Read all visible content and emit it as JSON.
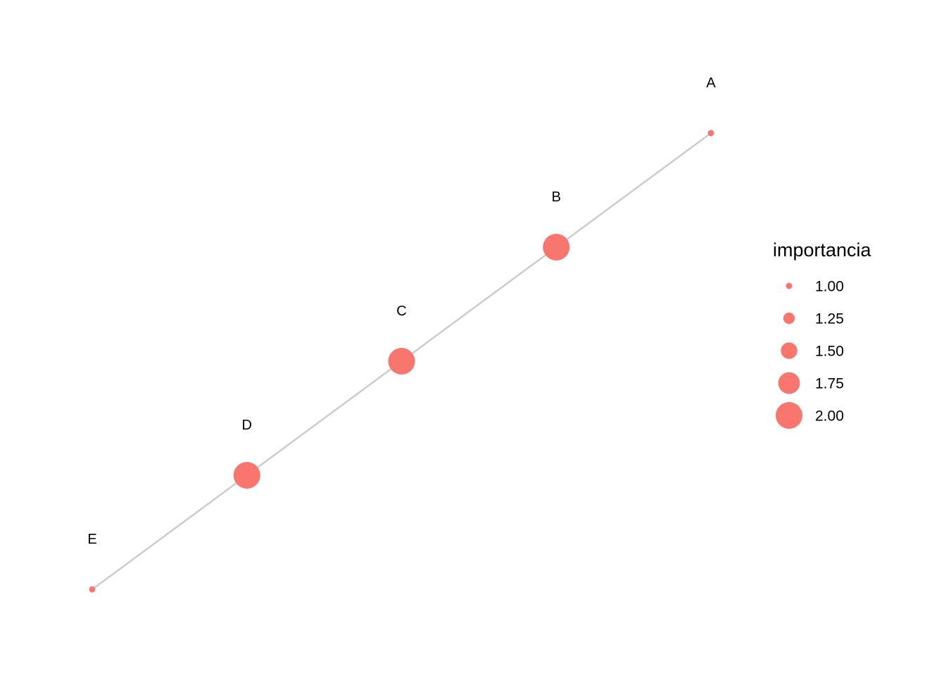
{
  "graph": {
    "nodes": [
      {
        "id": "A",
        "importancia": 1.0
      },
      {
        "id": "B",
        "importancia": 2.0
      },
      {
        "id": "C",
        "importancia": 2.0
      },
      {
        "id": "D",
        "importancia": 2.0
      },
      {
        "id": "E",
        "importancia": 1.0
      }
    ],
    "edges": [
      {
        "from": "A",
        "to": "B"
      },
      {
        "from": "B",
        "to": "C"
      },
      {
        "from": "C",
        "to": "D"
      },
      {
        "from": "D",
        "to": "E"
      }
    ],
    "node_color": "#F8766D",
    "edge_color": "#CCCCCC"
  },
  "legend": {
    "title": "importancia",
    "entries": [
      {
        "label": "1.00",
        "value": 1.0
      },
      {
        "label": "1.25",
        "value": 1.25
      },
      {
        "label": "1.50",
        "value": 1.5
      },
      {
        "label": "1.75",
        "value": 1.75
      },
      {
        "label": "2.00",
        "value": 2.0
      }
    ]
  }
}
